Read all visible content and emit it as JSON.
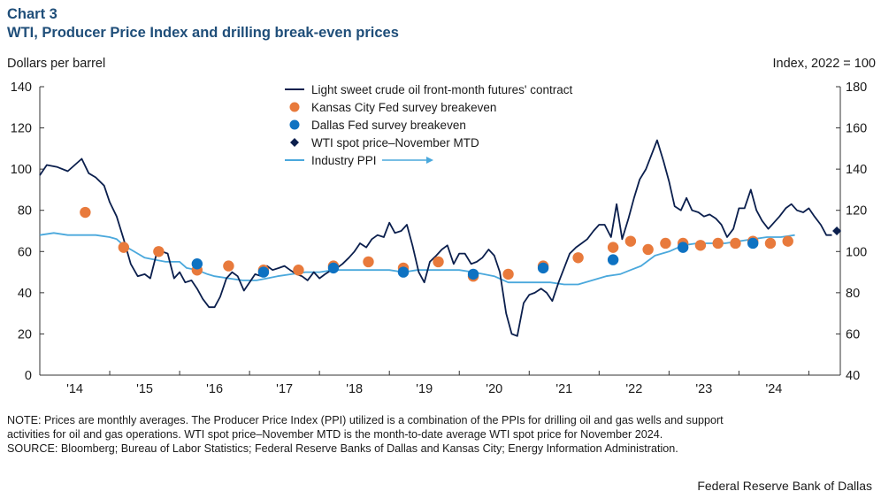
{
  "header": {
    "chart_number": "Chart 3",
    "title": "WTI, Producer Price Index and drilling break-even prices"
  },
  "axis_units": {
    "left": "Dollars per barrel",
    "right": "Index,  2022 = 100"
  },
  "colors": {
    "wti_line": "#0b1f4d",
    "kc_fed": "#e87a3c",
    "dallas_fed": "#0e72c2",
    "spot": "#0b1f4d",
    "ppi": "#4aa8dc",
    "axis": "#333333",
    "title": "#1f4e79"
  },
  "chart_data": {
    "type": "line",
    "title": "WTI, Producer Price Index and drilling break-even prices",
    "ylabel": "Dollars per barrel",
    "y2label": "Index,  2022 = 100",
    "ylim": [
      0,
      140
    ],
    "y2lim": [
      40,
      180
    ],
    "yticks": [
      0,
      20,
      40,
      60,
      80,
      100,
      120,
      140
    ],
    "y2ticks": [
      40,
      60,
      80,
      100,
      120,
      140,
      160,
      180
    ],
    "xlim": [
      2013.5,
      2024.95
    ],
    "year_labels": [
      "'14",
      "'15",
      "'16",
      "'17",
      "'18",
      "'19",
      "'20",
      "'21",
      "'22",
      "'23",
      "'24"
    ],
    "year_label_positions": [
      2014.0,
      2015.0,
      2016.0,
      2017.0,
      2018.0,
      2019.0,
      2020.0,
      2021.0,
      2022.0,
      2023.0,
      2024.0
    ],
    "legend_position": "top-center",
    "series": [
      {
        "name": "Light sweet crude oil front-month futures' contract",
        "kind": "line",
        "axis": "left",
        "x": [
          2013.5,
          2013.6,
          2013.75,
          2013.9,
          2014.0,
          2014.1,
          2014.2,
          2014.3,
          2014.42,
          2014.5,
          2014.6,
          2014.7,
          2014.8,
          2014.9,
          2015.0,
          2015.08,
          2015.17,
          2015.25,
          2015.33,
          2015.42,
          2015.5,
          2015.58,
          2015.67,
          2015.75,
          2015.83,
          2015.92,
          2016.0,
          2016.08,
          2016.17,
          2016.25,
          2016.33,
          2016.42,
          2016.5,
          2016.58,
          2016.67,
          2016.75,
          2016.83,
          2016.92,
          2017.0,
          2017.08,
          2017.17,
          2017.25,
          2017.33,
          2017.42,
          2017.5,
          2017.58,
          2017.67,
          2017.75,
          2017.83,
          2017.92,
          2018.0,
          2018.08,
          2018.17,
          2018.25,
          2018.33,
          2018.42,
          2018.5,
          2018.58,
          2018.67,
          2018.75,
          2018.83,
          2018.92,
          2019.0,
          2019.08,
          2019.17,
          2019.25,
          2019.33,
          2019.42,
          2019.5,
          2019.58,
          2019.67,
          2019.75,
          2019.83,
          2019.92,
          2020.0,
          2020.08,
          2020.17,
          2020.25,
          2020.33,
          2020.42,
          2020.5,
          2020.58,
          2020.67,
          2020.75,
          2020.83,
          2020.92,
          2021.0,
          2021.08,
          2021.17,
          2021.25,
          2021.33,
          2021.42,
          2021.5,
          2021.58,
          2021.67,
          2021.75,
          2021.83,
          2021.92,
          2022.0,
          2022.08,
          2022.17,
          2022.25,
          2022.33,
          2022.42,
          2022.5,
          2022.58,
          2022.67,
          2022.75,
          2022.83,
          2022.92,
          2023.0,
          2023.08,
          2023.17,
          2023.25,
          2023.33,
          2023.42,
          2023.5,
          2023.58,
          2023.67,
          2023.75,
          2023.83,
          2023.92,
          2024.0,
          2024.08,
          2024.17,
          2024.25,
          2024.33,
          2024.42,
          2024.5,
          2024.58,
          2024.67,
          2024.75,
          2024.83
        ],
        "y": [
          97,
          102,
          101,
          99,
          102,
          105,
          98,
          96,
          92,
          84,
          77,
          66,
          54,
          48,
          49,
          47,
          59,
          60,
          59,
          47,
          50,
          45,
          46,
          42,
          37,
          33,
          33,
          38,
          47,
          50,
          48,
          41,
          45,
          49,
          48,
          53,
          51,
          52,
          53,
          51,
          49,
          48,
          46,
          50,
          47,
          49,
          51,
          52,
          54,
          57,
          60,
          64,
          62,
          66,
          68,
          67,
          74,
          69,
          70,
          73,
          63,
          50,
          45,
          55,
          58,
          61,
          63,
          54,
          59,
          59,
          54,
          55,
          57,
          61,
          58,
          50,
          30,
          20,
          19,
          35,
          39,
          40,
          42,
          40,
          36,
          45,
          52,
          59,
          62,
          64,
          66,
          70,
          73,
          73,
          67,
          83,
          66,
          76,
          86,
          95,
          100,
          107,
          114,
          104,
          94,
          82,
          80,
          86,
          80,
          79,
          77,
          78,
          76,
          73,
          67,
          71,
          81,
          81,
          90,
          80,
          75,
          71,
          74,
          77,
          81,
          83,
          80,
          79,
          81,
          77,
          73,
          68,
          68
        ]
      },
      {
        "name": "Kansas City Fed survey breakeven",
        "kind": "points",
        "axis": "left",
        "x": [
          2014.15,
          2014.7,
          2015.2,
          2015.75,
          2016.2,
          2016.7,
          2017.2,
          2017.7,
          2018.2,
          2018.7,
          2019.2,
          2019.7,
          2020.2,
          2020.7,
          2021.2,
          2021.7,
          2021.95,
          2022.2,
          2022.45,
          2022.7,
          2022.95,
          2023.2,
          2023.45,
          2023.7,
          2023.95,
          2024.2
        ],
        "y": [
          79,
          62,
          60,
          51,
          53,
          51,
          51,
          53,
          55,
          52,
          55,
          48,
          49,
          53,
          57,
          62,
          65,
          61,
          64,
          64,
          63,
          64,
          64,
          65,
          64,
          65
        ]
      },
      {
        "name": "Dallas Fed survey breakeven",
        "kind": "points",
        "axis": "left",
        "x": [
          2015.75,
          2016.7,
          2017.7,
          2018.7,
          2019.7,
          2020.7,
          2021.7,
          2022.7,
          2023.7
        ],
        "y": [
          54,
          50,
          52,
          50,
          49,
          52,
          56,
          62,
          64
        ]
      },
      {
        "name": "WTI spot price–November MTD",
        "kind": "marker",
        "axis": "left",
        "x": [
          2024.9
        ],
        "y": [
          70
        ]
      },
      {
        "name": "Industry PPI",
        "kind": "line",
        "axis": "right",
        "x": [
          2013.5,
          2013.7,
          2013.9,
          2014.1,
          2014.3,
          2014.5,
          2014.6,
          2014.7,
          2014.8,
          2014.9,
          2015.0,
          2015.15,
          2015.3,
          2015.5,
          2015.6,
          2015.75,
          2015.9,
          2016.0,
          2016.2,
          2016.4,
          2016.5,
          2016.6,
          2016.75,
          2016.9,
          2017.1,
          2017.3,
          2017.5,
          2017.7,
          2017.9,
          2018.1,
          2018.3,
          2018.5,
          2018.7,
          2018.9,
          2019.1,
          2019.3,
          2019.5,
          2019.7,
          2019.85,
          2020.0,
          2020.2,
          2020.4,
          2020.6,
          2020.8,
          2021.0,
          2021.2,
          2021.4,
          2021.6,
          2021.8,
          2021.95,
          2022.1,
          2022.3,
          2022.5,
          2022.7,
          2022.9,
          2023.1,
          2023.3,
          2023.5,
          2023.7,
          2023.9,
          2024.1,
          2024.3
        ],
        "y": [
          108,
          109,
          108,
          108,
          108,
          107,
          106,
          103,
          101,
          99,
          97,
          96,
          95,
          95,
          92,
          91,
          89,
          88,
          87,
          86,
          86,
          86,
          87,
          88,
          89,
          90,
          90,
          91,
          91,
          91,
          91,
          91,
          90,
          91,
          91,
          91,
          91,
          90,
          89,
          88,
          85,
          85,
          85,
          85,
          84,
          84,
          86,
          88,
          89,
          91,
          93,
          98,
          100,
          103,
          104,
          104,
          104,
          105,
          106,
          107,
          107,
          108
        ]
      }
    ]
  },
  "notes": {
    "note_line1": "NOTE: Prices are monthly averages. The Producer Price Index (PPI) utilized is a combination of the PPIs for drilling oil and gas wells and support",
    "note_line2": "activities for oil and gas operations. WTI spot price–November MTD is the month-to-date average WTI spot price for November 2024.",
    "source": "SOURCE: Bloomberg; Bureau of Labor Statistics; Federal Reserve Banks of Dallas and Kansas City; Energy Information Administration."
  },
  "footer": {
    "credit": "Federal Reserve Bank of Dallas"
  }
}
